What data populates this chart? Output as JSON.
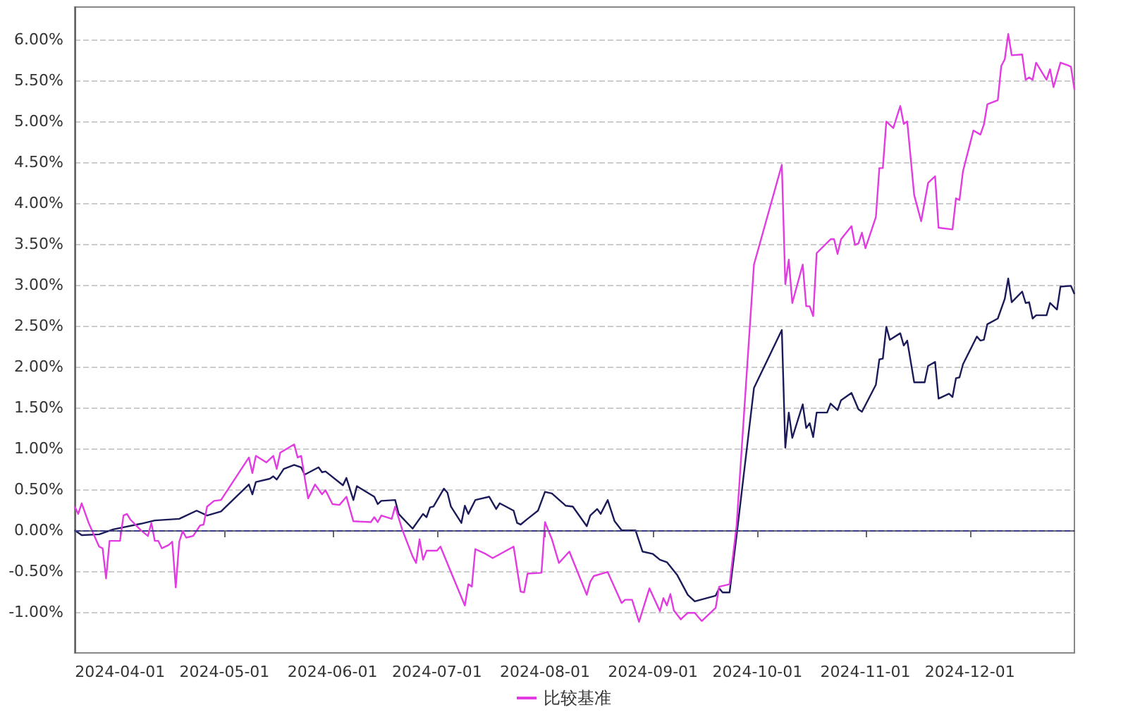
{
  "chart_data": {
    "type": "line",
    "xlim": [
      "2024-03-19",
      "2024-12-31"
    ],
    "xticks": [
      "2024-04-01",
      "2024-05-01",
      "2024-06-01",
      "2024-07-01",
      "2024-08-01",
      "2024-09-01",
      "2024-10-01",
      "2024-11-01",
      "2024-12-01"
    ],
    "ylim": [
      -1.5,
      6.4
    ],
    "yticks": [
      {
        "value": -1,
        "label": "-1.00%"
      },
      {
        "value": -0.5,
        "label": "-0.50%"
      },
      {
        "value": 0,
        "label": "0.00%"
      },
      {
        "value": 0.5,
        "label": "0.50%"
      },
      {
        "value": 1,
        "label": "1.00%"
      },
      {
        "value": 1.5,
        "label": "1.50%"
      },
      {
        "value": 2,
        "label": "2.00%"
      },
      {
        "value": 2.5,
        "label": "2.50%"
      },
      {
        "value": 3,
        "label": "3.00%"
      },
      {
        "value": 3.5,
        "label": "3.50%"
      },
      {
        "value": 4,
        "label": "4.00%"
      },
      {
        "value": 4.5,
        "label": "4.50%"
      },
      {
        "value": 5,
        "label": "5.00%"
      },
      {
        "value": 5.5,
        "label": "5.50%"
      },
      {
        "value": 6,
        "label": "6.00%"
      }
    ],
    "grid": "y",
    "legend": "bottom",
    "marker": "none",
    "line_style": "solid",
    "ref_lines": [
      {
        "axis": "y",
        "value": 0,
        "color": "#3a3a8c",
        "line_style": "dashed"
      }
    ],
    "series": [
      {
        "color": "#1b1b5a",
        "x": [
          "2024-03-19",
          "2024-03-21",
          "2024-03-26",
          "2024-03-30",
          "2024-04-07",
          "2024-04-11",
          "2024-04-18",
          "2024-04-23",
          "2024-04-26",
          "2024-04-30",
          "2024-05-08",
          "2024-05-09",
          "2024-05-10",
          "2024-05-14",
          "2024-05-15",
          "2024-05-16",
          "2024-05-18",
          "2024-05-21",
          "2024-05-23",
          "2024-05-24",
          "2024-05-28",
          "2024-05-29",
          "2024-05-30",
          "2024-06-04",
          "2024-06-05",
          "2024-06-07",
          "2024-06-08",
          "2024-06-13",
          "2024-06-14",
          "2024-06-15",
          "2024-06-19",
          "2024-06-20",
          "2024-06-24",
          "2024-06-27",
          "2024-06-28",
          "2024-06-29",
          "2024-06-30",
          "2024-07-03",
          "2024-07-04",
          "2024-07-05",
          "2024-07-08",
          "2024-07-09",
          "2024-07-10",
          "2024-07-12",
          "2024-07-16",
          "2024-07-18",
          "2024-07-19",
          "2024-07-23",
          "2024-07-24",
          "2024-07-25",
          "2024-07-27",
          "2024-07-30",
          "2024-08-01",
          "2024-08-03",
          "2024-08-07",
          "2024-08-09",
          "2024-08-13",
          "2024-08-14",
          "2024-08-16",
          "2024-08-17",
          "2024-08-19",
          "2024-08-21",
          "2024-08-23",
          "2024-08-27",
          "2024-08-29",
          "2024-09-01",
          "2024-09-03",
          "2024-09-05",
          "2024-09-08",
          "2024-09-11",
          "2024-09-13",
          "2024-09-19",
          "2024-09-20",
          "2024-09-21",
          "2024-09-23",
          "2024-09-25",
          "2024-09-30",
          "2024-10-08",
          "2024-10-09",
          "2024-10-10",
          "2024-10-11",
          "2024-10-14",
          "2024-10-15",
          "2024-10-16",
          "2024-10-17",
          "2024-10-18",
          "2024-10-21",
          "2024-10-22",
          "2024-10-24",
          "2024-10-25",
          "2024-10-28",
          "2024-10-30",
          "2024-10-31",
          "2024-11-04",
          "2024-11-05",
          "2024-11-06",
          "2024-11-07",
          "2024-11-08",
          "2024-11-11",
          "2024-11-12",
          "2024-11-13",
          "2024-11-15",
          "2024-11-18",
          "2024-11-19",
          "2024-11-21",
          "2024-11-22",
          "2024-11-25",
          "2024-11-26",
          "2024-11-27",
          "2024-11-28",
          "2024-11-29",
          "2024-12-03",
          "2024-12-04",
          "2024-12-05",
          "2024-12-06",
          "2024-12-09",
          "2024-12-11",
          "2024-12-12",
          "2024-12-13",
          "2024-12-16",
          "2024-12-17",
          "2024-12-18",
          "2024-12-19",
          "2024-12-20",
          "2024-12-23",
          "2024-12-24",
          "2024-12-26",
          "2024-12-27",
          "2024-12-30",
          "2024-12-31"
        ],
        "values": [
          0.0,
          -0.06,
          -0.05,
          0.01,
          0.08,
          0.12,
          0.14,
          0.24,
          0.18,
          0.23,
          0.56,
          0.44,
          0.59,
          0.63,
          0.66,
          0.62,
          0.75,
          0.8,
          0.77,
          0.68,
          0.77,
          0.71,
          0.72,
          0.55,
          0.64,
          0.37,
          0.54,
          0.41,
          0.32,
          0.36,
          0.37,
          0.2,
          0.02,
          0.2,
          0.16,
          0.28,
          0.29,
          0.51,
          0.46,
          0.29,
          0.09,
          0.3,
          0.2,
          0.37,
          0.41,
          0.26,
          0.33,
          0.24,
          0.09,
          0.07,
          0.14,
          0.24,
          0.47,
          0.45,
          0.3,
          0.29,
          0.05,
          0.18,
          0.26,
          0.2,
          0.37,
          0.11,
          0.0,
          0.0,
          -0.26,
          -0.29,
          -0.36,
          -0.39,
          -0.55,
          -0.79,
          -0.87,
          -0.8,
          -0.71,
          -0.76,
          -0.76,
          -0.07,
          1.74,
          2.45,
          1.01,
          1.44,
          1.13,
          1.54,
          1.25,
          1.31,
          1.14,
          1.44,
          1.44,
          1.55,
          1.47,
          1.59,
          1.68,
          1.48,
          1.45,
          1.78,
          2.09,
          2.1,
          2.49,
          2.33,
          2.41,
          2.26,
          2.32,
          1.81,
          1.81,
          2.01,
          2.06,
          1.61,
          1.67,
          1.63,
          1.86,
          1.87,
          2.03,
          2.37,
          2.32,
          2.33,
          2.52,
          2.59,
          2.83,
          3.08,
          2.79,
          2.92,
          2.78,
          2.79,
          2.59,
          2.63,
          2.63,
          2.78,
          2.7,
          2.98,
          2.99,
          2.89
        ]
      },
      {
        "name": "比较基准",
        "color": "#e23be2",
        "x": [
          "2024-03-19",
          "2024-03-20",
          "2024-03-21",
          "2024-03-23",
          "2024-03-26",
          "2024-03-27",
          "2024-03-28",
          "2024-03-29",
          "2024-04-01",
          "2024-04-02",
          "2024-04-03",
          "2024-04-04",
          "2024-04-07",
          "2024-04-09",
          "2024-04-10",
          "2024-04-11",
          "2024-04-12",
          "2024-04-13",
          "2024-04-15",
          "2024-04-16",
          "2024-04-17",
          "2024-04-18",
          "2024-04-19",
          "2024-04-20",
          "2024-04-22",
          "2024-04-24",
          "2024-04-25",
          "2024-04-26",
          "2024-04-28",
          "2024-04-30",
          "2024-05-08",
          "2024-05-09",
          "2024-05-10",
          "2024-05-13",
          "2024-05-15",
          "2024-05-16",
          "2024-05-17",
          "2024-05-21",
          "2024-05-22",
          "2024-05-23",
          "2024-05-25",
          "2024-05-27",
          "2024-05-29",
          "2024-05-30",
          "2024-06-01",
          "2024-06-03",
          "2024-06-05",
          "2024-06-07",
          "2024-06-12",
          "2024-06-13",
          "2024-06-14",
          "2024-06-15",
          "2024-06-18",
          "2024-06-19",
          "2024-06-21",
          "2024-06-24",
          "2024-06-25",
          "2024-06-26",
          "2024-06-27",
          "2024-06-28",
          "2024-07-01",
          "2024-07-02",
          "2024-07-05",
          "2024-07-09",
          "2024-07-10",
          "2024-07-11",
          "2024-07-12",
          "2024-07-15",
          "2024-07-17",
          "2024-07-23",
          "2024-07-25",
          "2024-07-26",
          "2024-07-27",
          "2024-07-31",
          "2024-08-01",
          "2024-08-03",
          "2024-08-05",
          "2024-08-08",
          "2024-08-13",
          "2024-08-14",
          "2024-08-15",
          "2024-08-19",
          "2024-08-23",
          "2024-08-24",
          "2024-08-26",
          "2024-08-28",
          "2024-08-31",
          "2024-09-03",
          "2024-09-04",
          "2024-09-05",
          "2024-09-06",
          "2024-09-07",
          "2024-09-09",
          "2024-09-11",
          "2024-09-13",
          "2024-09-15",
          "2024-09-19",
          "2024-09-20",
          "2024-09-23",
          "2024-09-25",
          "2024-09-30",
          "2024-10-08",
          "2024-10-09",
          "2024-10-10",
          "2024-10-11",
          "2024-10-14",
          "2024-10-15",
          "2024-10-16",
          "2024-10-17",
          "2024-10-18",
          "2024-10-22",
          "2024-10-23",
          "2024-10-24",
          "2024-10-25",
          "2024-10-28",
          "2024-10-29",
          "2024-10-30",
          "2024-10-31",
          "2024-11-01",
          "2024-11-04",
          "2024-11-05",
          "2024-11-06",
          "2024-11-07",
          "2024-11-09",
          "2024-11-11",
          "2024-11-12",
          "2024-11-13",
          "2024-11-15",
          "2024-11-17",
          "2024-11-19",
          "2024-11-21",
          "2024-11-22",
          "2024-11-26",
          "2024-11-27",
          "2024-11-28",
          "2024-11-29",
          "2024-12-02",
          "2024-12-04",
          "2024-12-05",
          "2024-12-06",
          "2024-12-09",
          "2024-12-10",
          "2024-12-11",
          "2024-12-12",
          "2024-12-13",
          "2024-12-16",
          "2024-12-17",
          "2024-12-18",
          "2024-12-19",
          "2024-12-20",
          "2024-12-23",
          "2024-12-24",
          "2024-12-25",
          "2024-12-27",
          "2024-12-29",
          "2024-12-30",
          "2024-12-31"
        ],
        "values": [
          0.29,
          0.2,
          0.33,
          0.09,
          -0.2,
          -0.22,
          -0.59,
          -0.13,
          -0.13,
          0.18,
          0.2,
          0.13,
          0.0,
          -0.07,
          0.09,
          -0.13,
          -0.13,
          -0.22,
          -0.18,
          -0.14,
          -0.7,
          -0.14,
          -0.01,
          -0.09,
          -0.07,
          0.06,
          0.07,
          0.29,
          0.36,
          0.37,
          0.89,
          0.7,
          0.91,
          0.83,
          0.91,
          0.75,
          0.95,
          1.05,
          0.89,
          0.91,
          0.39,
          0.56,
          0.44,
          0.49,
          0.32,
          0.31,
          0.41,
          0.11,
          0.1,
          0.16,
          0.1,
          0.18,
          0.14,
          0.29,
          0.01,
          -0.32,
          -0.4,
          -0.11,
          -0.36,
          -0.25,
          -0.25,
          -0.2,
          -0.51,
          -0.92,
          -0.66,
          -0.69,
          -0.23,
          -0.29,
          -0.34,
          -0.2,
          -0.75,
          -0.76,
          -0.53,
          -0.52,
          0.1,
          -0.11,
          -0.4,
          -0.26,
          -0.79,
          -0.63,
          -0.56,
          -0.51,
          -0.89,
          -0.85,
          -0.85,
          -1.12,
          -0.71,
          -0.99,
          -0.83,
          -0.92,
          -0.78,
          -0.98,
          -1.09,
          -1.01,
          -1.01,
          -1.11,
          -0.95,
          -0.69,
          -0.66,
          0.05,
          3.25,
          4.47,
          3.01,
          3.31,
          2.78,
          3.25,
          2.74,
          2.74,
          2.62,
          3.39,
          3.56,
          3.56,
          3.38,
          3.56,
          3.72,
          3.49,
          3.51,
          3.64,
          3.45,
          3.83,
          4.43,
          4.43,
          5.0,
          4.92,
          5.19,
          4.97,
          5.0,
          4.1,
          3.78,
          4.25,
          4.33,
          3.7,
          3.68,
          4.06,
          4.04,
          4.39,
          4.89,
          4.84,
          4.96,
          5.21,
          5.26,
          5.68,
          5.76,
          6.07,
          5.81,
          5.82,
          5.51,
          5.54,
          5.51,
          5.72,
          5.51,
          5.64,
          5.42,
          5.72,
          5.69,
          5.67,
          5.39
        ]
      }
    ]
  }
}
